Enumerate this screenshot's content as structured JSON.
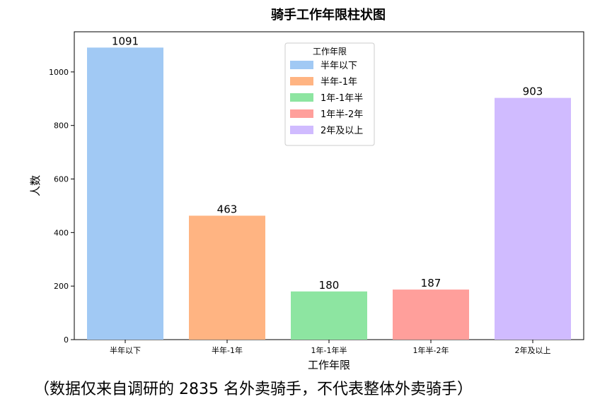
{
  "chart_data": {
    "type": "bar",
    "title": "骑手工作年限柱状图",
    "xlabel": "工作年限",
    "ylabel": "人数",
    "categories": [
      "半年以下",
      "半年-1年",
      "1年-1年半",
      "1年半-2年",
      "2年及以上"
    ],
    "values": [
      1091,
      463,
      180,
      187,
      903
    ],
    "colors": [
      "#a1c9f4",
      "#ffb482",
      "#8de5a1",
      "#ff9f9b",
      "#d0bbff"
    ],
    "ylim": [
      0,
      1150
    ],
    "yticks": [
      0,
      200,
      400,
      600,
      800,
      1000
    ],
    "grid": false,
    "legend": {
      "title": "工作年限",
      "placement": "top-center",
      "entries": [
        "半年以下",
        "半年-1年",
        "1年-1年半",
        "1年半-2年",
        "2年及以上"
      ]
    }
  },
  "footnote": "（数据仅来自调研的 2835 名外卖骑手，不代表整体外卖骑手）"
}
